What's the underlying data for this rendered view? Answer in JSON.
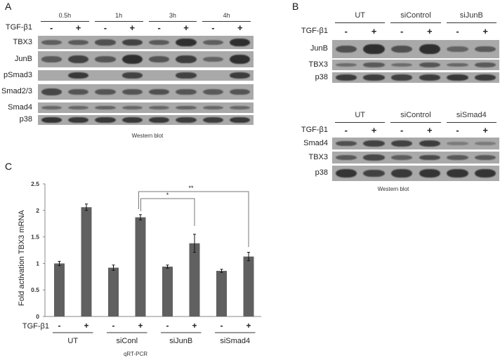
{
  "panelA": {
    "letter": "A",
    "treatment_label": "TGF-β1",
    "timepoints": [
      "0.5h",
      "1h",
      "3h",
      "4h"
    ],
    "signs": [
      "-",
      "+",
      "-",
      "+",
      "-",
      "+",
      "-",
      "+"
    ],
    "rows": [
      {
        "label": "TBX3",
        "intensities": [
          0.45,
          0.5,
          0.6,
          0.75,
          0.5,
          0.95,
          0.45,
          0.95
        ]
      },
      {
        "label": "JunB",
        "intensities": [
          0.5,
          0.75,
          0.55,
          0.95,
          0.55,
          0.8,
          0.4,
          0.95
        ]
      },
      {
        "label": "pSmad3",
        "intensities": [
          0.0,
          0.85,
          0.0,
          0.75,
          0.0,
          0.75,
          0.0,
          0.8
        ]
      },
      {
        "label": "Smad2/3",
        "intensities": [
          0.7,
          0.55,
          0.55,
          0.55,
          0.6,
          0.55,
          0.5,
          0.55
        ]
      },
      {
        "label": "Smad4",
        "intensities": [
          0.35,
          0.35,
          0.4,
          0.35,
          0.35,
          0.4,
          0.35,
          0.35
        ]
      },
      {
        "label": "p38",
        "intensities": [
          0.9,
          0.85,
          0.85,
          0.85,
          0.85,
          0.8,
          0.8,
          0.85
        ]
      }
    ],
    "caption": "Western blot"
  },
  "panelB": {
    "letter": "B",
    "treatment_label": "TGF-β1",
    "top": {
      "groups": [
        "UT",
        "siControl",
        "siJunB"
      ],
      "signs": [
        "-",
        "+",
        "-",
        "+",
        "-",
        "+"
      ],
      "rows": [
        {
          "label": "JunB",
          "intensities": [
            0.6,
            0.95,
            0.6,
            0.95,
            0.4,
            0.5
          ]
        },
        {
          "label": "TBX3",
          "intensities": [
            0.3,
            0.5,
            0.3,
            0.55,
            0.35,
            0.5
          ]
        },
        {
          "label": "p38",
          "intensities": [
            0.8,
            0.8,
            0.75,
            0.8,
            0.85,
            0.8
          ]
        }
      ]
    },
    "bottom": {
      "groups": [
        "UT",
        "siControl",
        "siSmad4"
      ],
      "signs": [
        "-",
        "+",
        "-",
        "+",
        "-",
        "+"
      ],
      "rows": [
        {
          "label": "Smad4",
          "intensities": [
            0.6,
            0.75,
            0.75,
            0.8,
            0.15,
            0.15
          ]
        },
        {
          "label": "TBX3",
          "intensities": [
            0.5,
            0.7,
            0.45,
            0.65,
            0.5,
            0.5
          ]
        },
        {
          "label": "p38",
          "intensities": [
            0.9,
            0.75,
            0.85,
            0.9,
            0.9,
            0.9
          ]
        }
      ]
    },
    "caption": "Western blot"
  },
  "panelC": {
    "letter": "C",
    "treatment_label": "TGF-β1",
    "signs": [
      "-",
      "+",
      "-",
      "+",
      "-",
      "+",
      "-",
      "+"
    ],
    "groups": [
      "UT",
      "siConl",
      "siJunB",
      "siSmad4"
    ],
    "caption": "qRT-PCR",
    "significance": [
      {
        "label": "*",
        "from_bar": 3,
        "to_bar": 5
      },
      {
        "label": "**",
        "from_bar": 3,
        "to_bar": 7
      }
    ]
  },
  "chart_data": {
    "type": "bar",
    "title": "",
    "xlabel": "",
    "ylabel": "Fold activation TBX3 mRNA",
    "ylim": [
      0,
      2.5
    ],
    "yticks": [
      "0",
      "0.5",
      "1",
      "1.5",
      "2",
      "2.5"
    ],
    "grid": false,
    "legend": "none",
    "categories": [
      "UT -",
      "UT +",
      "siConl -",
      "siConl +",
      "siJunB -",
      "siJunB +",
      "siSmad4 -",
      "siSmad4 +"
    ],
    "values": [
      1.0,
      2.06,
      0.92,
      1.87,
      0.94,
      1.38,
      0.86,
      1.13
    ],
    "errors": [
      0.04,
      0.06,
      0.05,
      0.05,
      0.03,
      0.17,
      0.03,
      0.08
    ],
    "bar_color": "#606060",
    "annotations": [
      "*",
      "**"
    ]
  }
}
